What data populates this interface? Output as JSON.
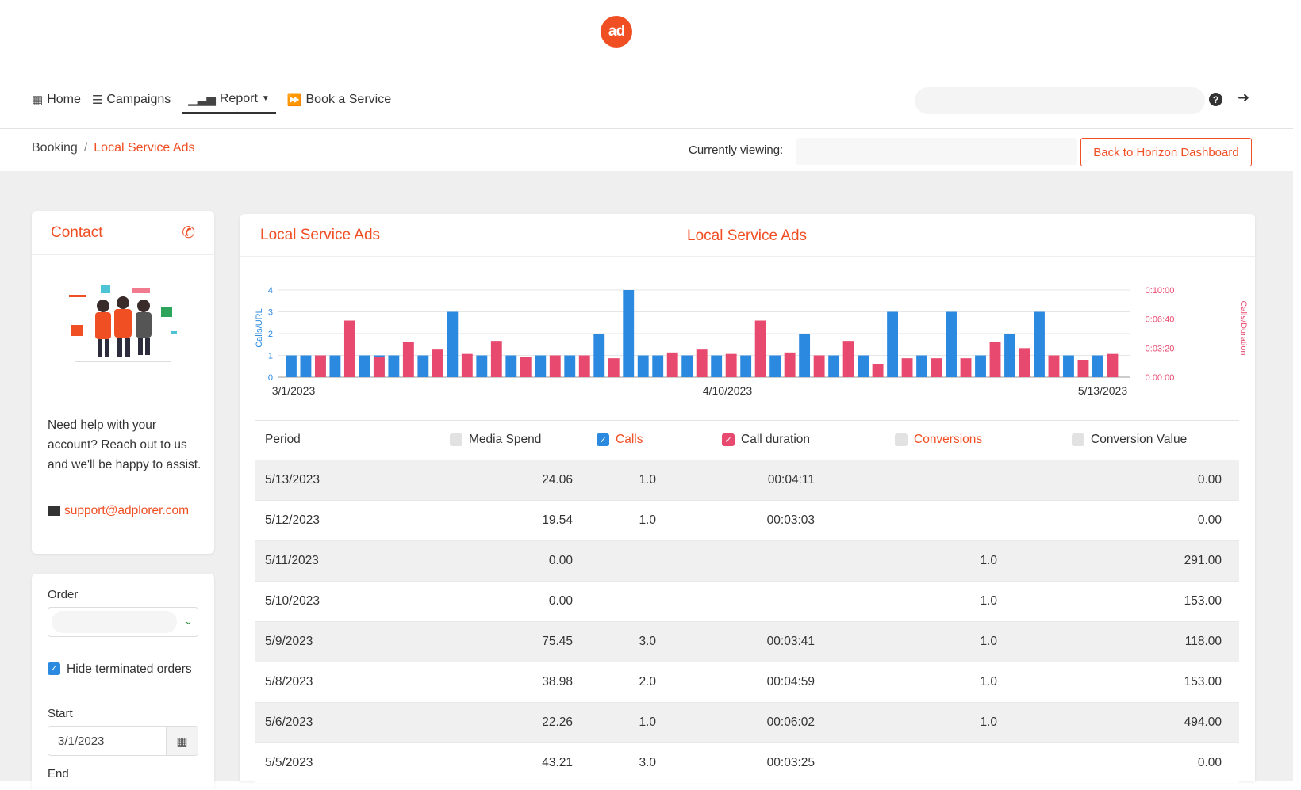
{
  "header": {
    "logo_text": "ad",
    "nav": [
      {
        "label": "Home",
        "icon": "grid-icon"
      },
      {
        "label": "Campaigns",
        "icon": "list-icon"
      },
      {
        "label": "Report",
        "icon": "bar-chart-icon"
      },
      {
        "label": "Book a Service",
        "icon": "fast-forward-icon"
      }
    ]
  },
  "breadcrumb": {
    "root": "Booking",
    "current": "Local Service Ads"
  },
  "viewing": {
    "label": "Currently viewing:",
    "back_button": "Back to Horizon Dashboard"
  },
  "contact": {
    "title": "Contact",
    "help_text": "Need help with your account? Reach out to us and we'll be happy to assist.",
    "email": "support@adplorer.com"
  },
  "filters": {
    "order_label": "Order",
    "hide_terminated_label": "Hide terminated orders",
    "start_label": "Start",
    "start_value": "3/1/2023",
    "end_label": "End"
  },
  "main": {
    "title": "Local Service Ads"
  },
  "chart_data": {
    "type": "bar",
    "title": "Local Service Ads",
    "ylabel_left": "Calls/URL",
    "ylabel_right": "Calls/Duration",
    "y_left_ticks": [
      "0",
      "1",
      "2",
      "3",
      "4"
    ],
    "y_right_ticks": [
      "0:00:00",
      "0:03:20",
      "0:06:40",
      "0:10:00"
    ],
    "x_tick_labels": [
      "3/1/2023",
      "4/10/2023",
      "5/13/2023"
    ],
    "series": [
      {
        "name": "Calls",
        "color": "#2b8ae0",
        "values": [
          1,
          1,
          0,
          0,
          0,
          1,
          1,
          1,
          0,
          0,
          1,
          3,
          0,
          1,
          0,
          0,
          0,
          0,
          1,
          1,
          1,
          2,
          0,
          4,
          1,
          1,
          0,
          0,
          0,
          1,
          0,
          1,
          0,
          1,
          2,
          0,
          0,
          0,
          1,
          1,
          0,
          0,
          3,
          0,
          0,
          0,
          1,
          0,
          0,
          0,
          3,
          1,
          0,
          2,
          3,
          0,
          0,
          0,
          0,
          0,
          1,
          1,
          0
        ]
      },
      {
        "name": "Call duration",
        "color": "#e8496e",
        "y_axis": "right",
        "values_seconds": [
          0,
          0,
          150,
          0,
          0,
          0,
          0,
          0,
          0,
          0,
          0,
          0,
          0,
          0,
          0,
          0,
          0,
          0,
          0,
          0,
          0,
          0,
          0,
          0,
          0,
          0,
          0,
          0,
          0,
          0,
          0,
          0,
          0,
          0,
          0,
          0,
          0,
          0,
          0,
          0,
          0,
          0,
          0,
          0,
          0,
          0,
          0,
          0,
          0,
          0,
          0,
          0,
          0,
          0,
          0,
          0,
          0,
          0,
          0,
          0,
          0,
          0,
          0
        ]
      }
    ],
    "groups": [
      {
        "c": 1,
        "d": 0
      },
      {
        "c": 1,
        "d": 0
      },
      {
        "c": 1,
        "d": 150
      },
      {
        "c": 1,
        "d": 0
      },
      {
        "c": 0,
        "d": 390
      },
      {
        "c": 1,
        "d": 0
      },
      {
        "c": 1,
        "d": 140
      },
      {
        "c": 1,
        "d": 0
      },
      {
        "c": 0,
        "d": 240
      },
      {
        "c": 1,
        "d": 0
      },
      {
        "c": 0,
        "d": 190
      },
      {
        "c": 3,
        "d": 0
      },
      {
        "c": 0,
        "d": 160
      },
      {
        "c": 1,
        "d": 0
      },
      {
        "c": 0,
        "d": 250
      },
      {
        "c": 1,
        "d": 0
      },
      {
        "c": 0,
        "d": 140
      },
      {
        "c": 1,
        "d": 0
      },
      {
        "c": 0,
        "d": 150
      },
      {
        "c": 1,
        "d": 0
      },
      {
        "c": 0,
        "d": 150
      },
      {
        "c": 2,
        "d": 0
      },
      {
        "c": 0,
        "d": 130
      },
      {
        "c": 4,
        "d": 0
      },
      {
        "c": 1,
        "d": 0
      },
      {
        "c": 1,
        "d": 0
      },
      {
        "c": 0,
        "d": 170
      },
      {
        "c": 1,
        "d": 0
      },
      {
        "c": 0,
        "d": 190
      },
      {
        "c": 1,
        "d": 0
      },
      {
        "c": 0,
        "d": 160
      },
      {
        "c": 1,
        "d": 0
      },
      {
        "c": 0,
        "d": 390
      },
      {
        "c": 1,
        "d": 0
      },
      {
        "c": 0,
        "d": 170
      },
      {
        "c": 2,
        "d": 0
      },
      {
        "c": 0,
        "d": 150
      },
      {
        "c": 1,
        "d": 0
      },
      {
        "c": 0,
        "d": 250
      },
      {
        "c": 1,
        "d": 0
      },
      {
        "c": 0,
        "d": 90
      },
      {
        "c": 3,
        "d": 0
      },
      {
        "c": 0,
        "d": 130
      },
      {
        "c": 1,
        "d": 0
      },
      {
        "c": 0,
        "d": 130
      },
      {
        "c": 3,
        "d": 0
      },
      {
        "c": 0,
        "d": 130
      },
      {
        "c": 1,
        "d": 0
      },
      {
        "c": 0,
        "d": 240
      },
      {
        "c": 2,
        "d": 0
      },
      {
        "c": 0,
        "d": 200
      },
      {
        "c": 3,
        "d": 0
      },
      {
        "c": 0,
        "d": 150
      },
      {
        "c": 1,
        "d": 0
      },
      {
        "c": 0,
        "d": 120
      },
      {
        "c": 1,
        "d": 0
      },
      {
        "c": 0,
        "d": 160
      }
    ]
  },
  "table": {
    "headers": {
      "period": "Period",
      "media_spend": "Media Spend",
      "calls": "Calls",
      "call_duration": "Call duration",
      "conversions": "Conversions",
      "conversion_value": "Conversion Value"
    },
    "rows": [
      {
        "period": "5/13/2023",
        "spend": "24.06",
        "calls": "1.0",
        "duration": "00:04:11",
        "conv": "",
        "value": "0.00"
      },
      {
        "period": "5/12/2023",
        "spend": "19.54",
        "calls": "1.0",
        "duration": "00:03:03",
        "conv": "",
        "value": "0.00"
      },
      {
        "period": "5/11/2023",
        "spend": "0.00",
        "calls": "",
        "duration": "",
        "conv": "1.0",
        "value": "291.00"
      },
      {
        "period": "5/10/2023",
        "spend": "0.00",
        "calls": "",
        "duration": "",
        "conv": "1.0",
        "value": "153.00"
      },
      {
        "period": "5/9/2023",
        "spend": "75.45",
        "calls": "3.0",
        "duration": "00:03:41",
        "conv": "1.0",
        "value": "118.00"
      },
      {
        "period": "5/8/2023",
        "spend": "38.98",
        "calls": "2.0",
        "duration": "00:04:59",
        "conv": "1.0",
        "value": "153.00"
      },
      {
        "period": "5/6/2023",
        "spend": "22.26",
        "calls": "1.0",
        "duration": "00:06:02",
        "conv": "1.0",
        "value": "494.00"
      },
      {
        "period": "5/5/2023",
        "spend": "43.21",
        "calls": "3.0",
        "duration": "00:03:25",
        "conv": "",
        "value": "0.00"
      }
    ]
  }
}
